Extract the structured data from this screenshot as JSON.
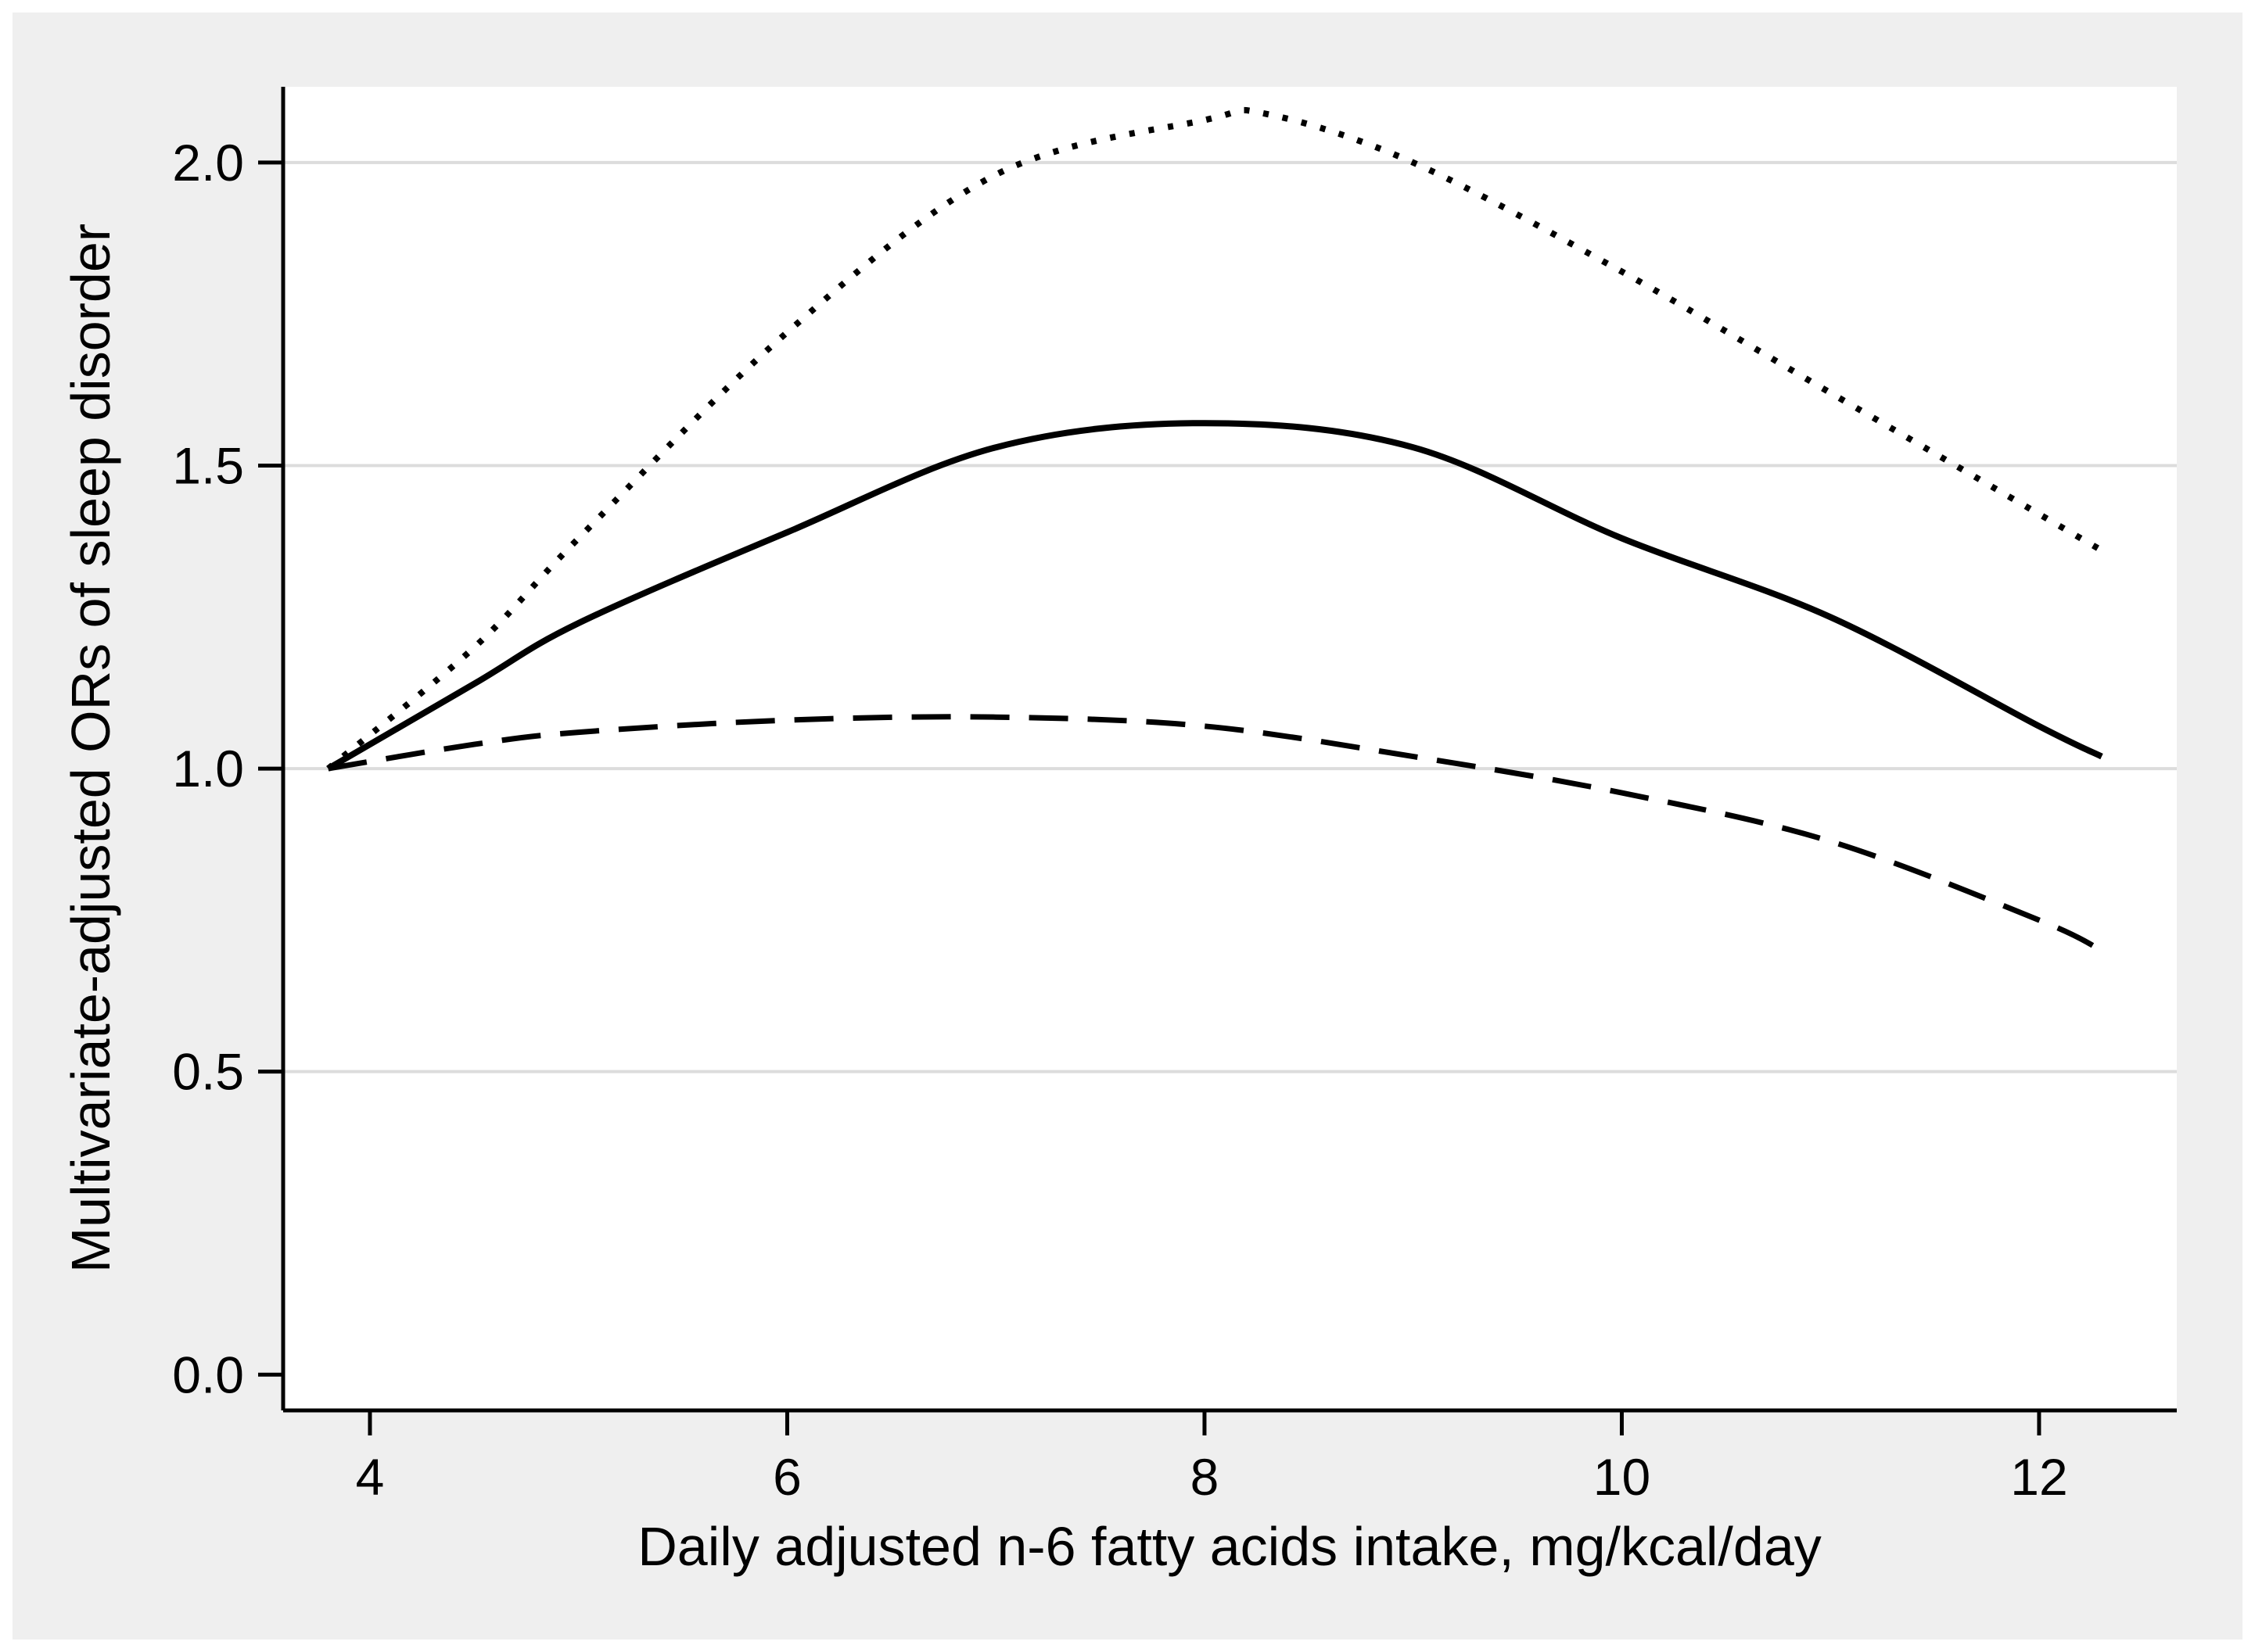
{
  "figure": {
    "description": "Line chart of multivariate-adjusted odds ratios of sleep disorder versus daily adjusted n-6 fatty acids intake, with solid point-estimate curve and dotted/dashed confidence-limit curves"
  },
  "colors": {
    "canvas_bg": "#efefef",
    "plot_bg": "#ffffff",
    "grid": "#dcdcdc",
    "axis": "#000000",
    "curve": "#000000"
  },
  "chart_data": {
    "type": "line",
    "title": "",
    "xlabel": "Daily adjusted n-6 fatty acids intake, mg/kcal/day",
    "ylabel": "Multivariate-adjusted ORs of sleep disorder",
    "x_ticks": [
      4,
      6,
      8,
      10,
      12
    ],
    "x_tick_labels": [
      "4",
      "6",
      "8",
      "10",
      "12"
    ],
    "y_ticks": [
      0.0,
      0.5,
      1.0,
      1.5,
      2.0
    ],
    "y_tick_labels": [
      "0.0",
      "0.5",
      "1.0",
      "1.5",
      "2.0"
    ],
    "grid_y_values": [
      0.5,
      1.0,
      1.5,
      2.0
    ],
    "xlim": [
      3.584,
      12.66
    ],
    "ylim": [
      -0.059,
      2.125
    ],
    "grid": "horizontal",
    "legend": "none",
    "series": [
      {
        "name": "solid",
        "style": "solid",
        "x": [
          3.8,
          4.5,
          5.0,
          6.0,
          7.0,
          8.0,
          9.0,
          10.0,
          11.0,
          12.0,
          12.3
        ],
        "y": [
          1.0,
          1.14,
          1.24,
          1.39,
          1.53,
          1.57,
          1.53,
          1.38,
          1.25,
          1.07,
          1.02
        ]
      },
      {
        "name": "dotted",
        "style": "dotted",
        "x": [
          3.8,
          4.5,
          5.0,
          6.0,
          7.0,
          8.0,
          8.3,
          9.0,
          10.0,
          11.0,
          12.0,
          12.3
        ],
        "y": [
          1.0,
          1.2,
          1.38,
          1.72,
          1.98,
          2.07,
          2.08,
          2.0,
          1.82,
          1.62,
          1.42,
          1.36
        ]
      },
      {
        "name": "dashed",
        "style": "dashed",
        "x": [
          3.8,
          4.5,
          5.0,
          6.0,
          7.0,
          8.0,
          9.0,
          10.0,
          11.0,
          12.0,
          12.3
        ],
        "y": [
          1.0,
          1.04,
          1.06,
          1.08,
          1.085,
          1.07,
          1.02,
          0.96,
          0.88,
          0.75,
          0.7
        ]
      }
    ]
  }
}
